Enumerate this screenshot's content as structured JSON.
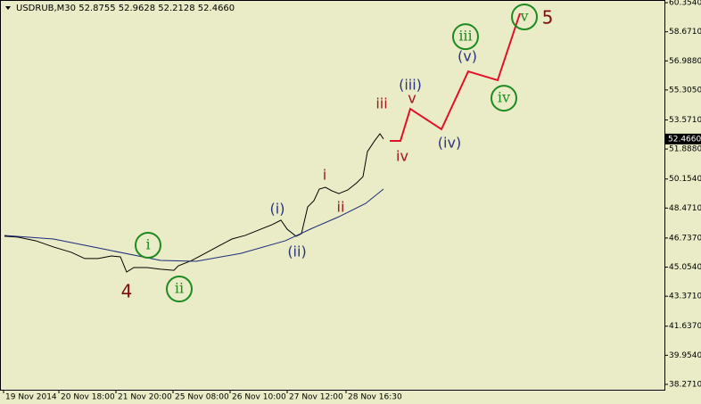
{
  "chart_data": {
    "type": "line",
    "title": "USDRUB,M30  52.8755 52.9628 52.2128 52.4660",
    "xlim": [
      0,
      372.5
    ],
    "ylim": [
      37.96,
      60.51
    ],
    "xticks": [
      {
        "value": 2,
        "label": "19 Nov 2014"
      },
      {
        "value": 33,
        "label": "20 Nov 18:00"
      },
      {
        "value": 65,
        "label": "21 Nov 20:00"
      },
      {
        "value": 97,
        "label": "25 Nov 08:00"
      },
      {
        "value": 129,
        "label": "26 Nov 10:00"
      },
      {
        "value": 161,
        "label": "27 Nov 12:00"
      },
      {
        "value": 194,
        "label": "28 Nov 16:30"
      }
    ],
    "yticks": [
      {
        "value": 60.354,
        "label": "60.3540"
      },
      {
        "value": 58.671,
        "label": "58.6710"
      },
      {
        "value": 56.988,
        "label": "56.9880"
      },
      {
        "value": 55.305,
        "label": "55.3050"
      },
      {
        "value": 53.571,
        "label": "53.5710"
      },
      {
        "value": 51.888,
        "label": "51.8880"
      },
      {
        "value": 50.154,
        "label": "50.1540"
      },
      {
        "value": 48.471,
        "label": "48.4710"
      },
      {
        "value": 46.737,
        "label": "46.7370"
      },
      {
        "value": 45.054,
        "label": "45.0540"
      },
      {
        "value": 43.371,
        "label": "43.3710"
      },
      {
        "value": 41.637,
        "label": "41.6370"
      },
      {
        "value": 39.954,
        "label": "39.9540"
      },
      {
        "value": 38.271,
        "label": "38.2710"
      }
    ],
    "last_price": {
      "value": 52.466,
      "label": "52.4660"
    },
    "series": [
      {
        "name": "USDRUB",
        "color": "#000000",
        "x": [
          2.5,
          10,
          20,
          30,
          40,
          47.5,
          55,
          62.5,
          67.5,
          71,
          75,
          82.5,
          90,
          97.5,
          100,
          107.5,
          115,
          122.5,
          130,
          137.5,
          145,
          152.5,
          157.5,
          161,
          166,
          169,
          172.5,
          176,
          179,
          182.5,
          186,
          190,
          195,
          200,
          203.5,
          206,
          210,
          213,
          215
        ],
        "values": [
          46.84,
          46.79,
          46.58,
          46.22,
          45.91,
          45.55,
          45.55,
          45.7,
          45.65,
          44.77,
          45.03,
          45.03,
          44.93,
          44.87,
          45.13,
          45.44,
          45.85,
          46.27,
          46.68,
          46.89,
          47.2,
          47.51,
          47.77,
          47.25,
          46.84,
          46.99,
          48.54,
          48.9,
          49.57,
          49.67,
          49.47,
          49.31,
          49.52,
          49.93,
          50.29,
          51.74,
          52.36,
          52.77,
          52.47
        ]
      },
      {
        "name": "MA",
        "color": "#1c2a7a",
        "x": [
          2.5,
          30,
          60,
          90,
          110,
          135,
          160,
          175,
          190,
          205,
          215
        ],
        "values": [
          46.89,
          46.68,
          46.06,
          45.44,
          45.39,
          45.85,
          46.58,
          47.3,
          47.97,
          48.74,
          49.57
        ]
      },
      {
        "name": "Projection",
        "color": "#e3102b",
        "x": [
          218.5,
          224.5,
          230,
          247.5,
          262.5,
          279,
          291.5
        ],
        "values": [
          52.36,
          52.36,
          54.21,
          53.03,
          56.38,
          55.87,
          59.74
        ]
      }
    ],
    "annotations": [
      {
        "text": "i",
        "x": 83,
        "y": 46.32,
        "color": "#1f8a1f",
        "circled": true
      },
      {
        "text": "ii",
        "x": 100.5,
        "y": 43.79,
        "color": "#1f8a1f",
        "circled": true
      },
      {
        "text": "4",
        "x": 71,
        "y": 43.59,
        "color": "#7a0e0e",
        "circled": false
      },
      {
        "text": "(i)",
        "x": 155.5,
        "y": 48.38,
        "color": "#2a3380",
        "circled": false
      },
      {
        "text": "(ii)",
        "x": 166.5,
        "y": 45.91,
        "color": "#2a3380",
        "circled": false
      },
      {
        "text": "i",
        "x": 182,
        "y": 50.34,
        "color": "#a0181a",
        "circled": false
      },
      {
        "text": "ii",
        "x": 191,
        "y": 48.49,
        "color": "#a0181a",
        "circled": false
      },
      {
        "text": "iii",
        "x": 214,
        "y": 54.47,
        "color": "#a0181a",
        "circled": false
      },
      {
        "text": "iv",
        "x": 225.5,
        "y": 51.43,
        "color": "#a0181a",
        "circled": false
      },
      {
        "text": "v",
        "x": 231,
        "y": 54.78,
        "color": "#a0181a",
        "circled": false
      },
      {
        "text": "(iii)",
        "x": 230,
        "y": 55.56,
        "color": "#2a3380",
        "circled": false
      },
      {
        "text": "(iv)",
        "x": 252,
        "y": 52.2,
        "color": "#2a3380",
        "circled": false
      },
      {
        "text": "(v)",
        "x": 262,
        "y": 57.21,
        "color": "#2a3380",
        "circled": false
      },
      {
        "text": "iii",
        "x": 261,
        "y": 58.39,
        "color": "#1f8a1f",
        "circled": true
      },
      {
        "text": "iv",
        "x": 282.5,
        "y": 54.83,
        "color": "#1f8a1f",
        "circled": true
      },
      {
        "text": "v",
        "x": 294,
        "y": 59.53,
        "color": "#1f8a1f",
        "circled": true
      },
      {
        "text": "5",
        "x": 307,
        "y": 59.43,
        "color": "#7a0e0e",
        "circled": false
      }
    ]
  }
}
